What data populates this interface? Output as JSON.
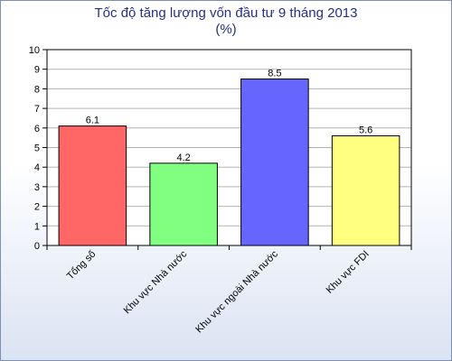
{
  "chart_data": {
    "type": "bar",
    "title": "Tốc độ tăng lượng vốn đầu tư 9 tháng 2013",
    "subtitle": "(%)",
    "categories": [
      "Tổng số",
      "Khu vực Nhà nước",
      "Khu vực ngoài Nhà nước",
      "Khu vực FDI"
    ],
    "values": [
      6.1,
      4.2,
      8.5,
      5.6
    ],
    "value_labels": [
      "6.1",
      "4.2",
      "8.5",
      "5.6"
    ],
    "colors": [
      "#ff6666",
      "#80ff80",
      "#6666ff",
      "#ffff80"
    ],
    "ylim": [
      0,
      10
    ],
    "yticks": [
      0,
      1,
      2,
      3,
      4,
      5,
      6,
      7,
      8,
      9,
      10
    ],
    "grid": true,
    "legend": "none"
  }
}
